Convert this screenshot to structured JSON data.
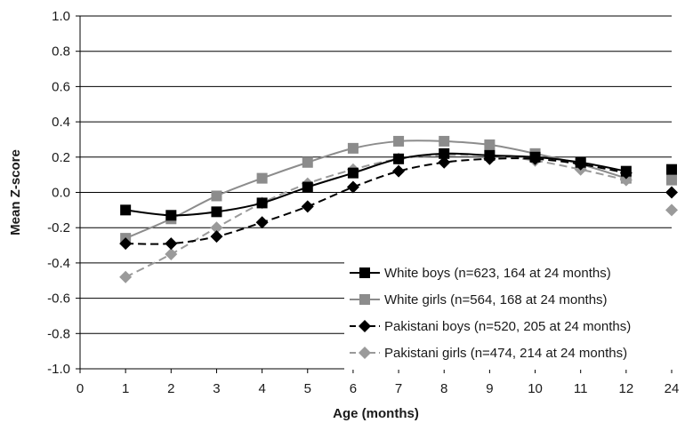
{
  "chart_data": {
    "type": "line",
    "xlabel": "Age (months)",
    "ylabel": "Mean Z-score",
    "ylim": [
      -1.0,
      1.0
    ],
    "y_ticks": [
      "1.0",
      "0.8",
      "0.6",
      "0.4",
      "0.2",
      "0.0",
      "-0.2",
      "-0.4",
      "-0.6",
      "-0.8",
      "-1.0"
    ],
    "x_ticks": [
      "0",
      "1",
      "2",
      "3",
      "4",
      "5",
      "6",
      "7",
      "8",
      "9",
      "10",
      "11",
      "12",
      "24"
    ],
    "grid": "horizontal",
    "legend_position": "bottom-right",
    "series": [
      {
        "name": "White boys (n=623, 164 at 24 months)",
        "color": "#000000",
        "marker": "square",
        "line_style": "solid",
        "line_color": "#000000",
        "x": [
          1,
          2,
          3,
          4,
          5,
          6,
          7,
          8,
          9,
          10,
          11,
          12
        ],
        "values": [
          -0.1,
          -0.13,
          -0.11,
          -0.06,
          0.03,
          0.11,
          0.19,
          0.22,
          0.21,
          0.2,
          0.17,
          0.12
        ],
        "point_24": 0.13
      },
      {
        "name": "White girls (n=564, 168 at 24 months)",
        "color": "#8c8c8c",
        "marker": "square",
        "line_style": "solid",
        "line_color": "#8c8c8c",
        "x": [
          1,
          2,
          3,
          4,
          5,
          6,
          7,
          8,
          9,
          10,
          11,
          12
        ],
        "values": [
          -0.26,
          -0.15,
          -0.02,
          0.08,
          0.17,
          0.25,
          0.29,
          0.29,
          0.27,
          0.22,
          0.16,
          0.08
        ],
        "point_24": 0.07
      },
      {
        "name": "Pakistani boys (n=520, 205 at 24 months)",
        "color": "#000000",
        "marker": "diamond",
        "line_style": "dashed",
        "line_color": "#000000",
        "x": [
          1,
          2,
          3,
          4,
          5,
          6,
          7,
          8,
          9,
          10,
          11,
          12
        ],
        "values": [
          -0.29,
          -0.29,
          -0.25,
          -0.17,
          -0.08,
          0.03,
          0.12,
          0.17,
          0.19,
          0.19,
          0.16,
          0.11
        ],
        "point_24": 0.0
      },
      {
        "name": "Pakistani girls (n=474, 214 at 24 months)",
        "color": "#9a9a9a",
        "marker": "diamond",
        "line_style": "dashed",
        "line_color": "#9a9a9a",
        "x": [
          1,
          2,
          3,
          4,
          5,
          6,
          7,
          8,
          9,
          10,
          11,
          12
        ],
        "values": [
          -0.48,
          -0.35,
          -0.2,
          -0.06,
          0.05,
          0.13,
          0.19,
          0.21,
          0.21,
          0.18,
          0.13,
          0.07
        ],
        "point_24": -0.1
      }
    ]
  }
}
